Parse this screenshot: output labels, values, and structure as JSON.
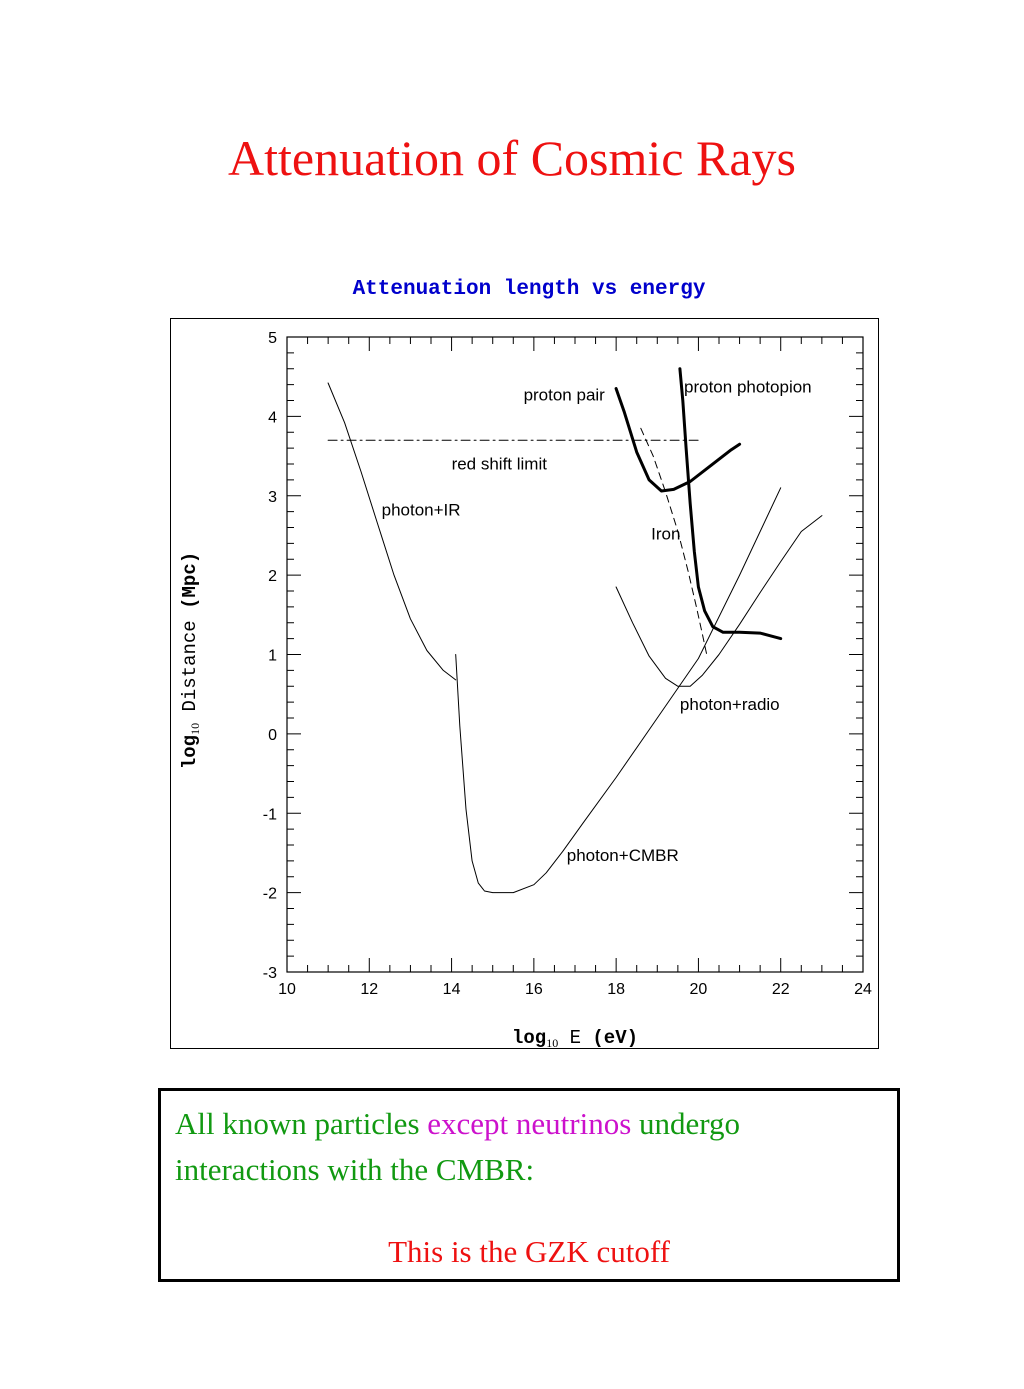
{
  "slide": {
    "title": "Attenuation of Cosmic Rays",
    "title_color": "#ee1111"
  },
  "chart_data": {
    "type": "line",
    "title": "Attenuation length vs energy",
    "title_color": "#0000cc",
    "xlabel": {
      "prefix": "log",
      "sub": "10",
      "main": " E ",
      "unit": "(eV)"
    },
    "ylabel": {
      "prefix": "log",
      "sub": "10",
      "main": " Distance ",
      "unit": "(Mpc)"
    },
    "xlim": [
      10,
      24
    ],
    "ylim": [
      -3,
      5
    ],
    "xticks": [
      10,
      12,
      14,
      16,
      18,
      20,
      22,
      24
    ],
    "yticks": [
      5,
      4,
      3,
      2,
      1,
      0,
      -1,
      -2,
      -3
    ],
    "grid": false,
    "series": [
      {
        "name": "photon+IR",
        "style": "thin",
        "x": [
          11.0,
          11.4,
          11.8,
          12.2,
          12.6,
          13.0,
          13.4,
          13.8,
          14.1
        ],
        "y": [
          4.42,
          3.92,
          3.3,
          2.65,
          2.0,
          1.45,
          1.05,
          0.8,
          0.68
        ]
      },
      {
        "name": "photon+CMBR",
        "style": "thin",
        "x": [
          14.1,
          14.2,
          14.35,
          14.5,
          14.65,
          14.8,
          15.0,
          15.5,
          16.0,
          16.3,
          16.7,
          17.2,
          18.0,
          19.0,
          20.0,
          21.0,
          22.0
        ],
        "y": [
          1.0,
          0.1,
          -0.95,
          -1.6,
          -1.88,
          -1.98,
          -2.0,
          -2.0,
          -1.9,
          -1.75,
          -1.48,
          -1.12,
          -0.55,
          0.2,
          0.95,
          2.0,
          3.1
        ]
      },
      {
        "name": "photon+radio",
        "style": "thin",
        "x": [
          18.0,
          18.4,
          18.8,
          19.2,
          19.5,
          19.8,
          20.1,
          20.5,
          21.0,
          21.5,
          22.0,
          22.5,
          23.0
        ],
        "y": [
          1.85,
          1.4,
          0.98,
          0.7,
          0.6,
          0.6,
          0.74,
          1.0,
          1.38,
          1.78,
          2.17,
          2.55,
          2.75
        ]
      },
      {
        "name": "proton pair",
        "style": "thick",
        "x": [
          18.0,
          18.2,
          18.5,
          18.8,
          19.1,
          19.4,
          19.8,
          20.3,
          20.8,
          21.0
        ],
        "y": [
          4.35,
          4.05,
          3.55,
          3.2,
          3.06,
          3.08,
          3.18,
          3.38,
          3.58,
          3.65
        ]
      },
      {
        "name": "proton photopion",
        "style": "thick",
        "x": [
          19.55,
          19.62,
          19.7,
          19.8,
          19.9,
          20.0,
          20.15,
          20.35,
          20.6,
          21.0,
          21.5,
          22.0
        ],
        "y": [
          4.6,
          4.2,
          3.6,
          2.9,
          2.3,
          1.85,
          1.55,
          1.35,
          1.28,
          1.28,
          1.27,
          1.2
        ]
      },
      {
        "name": "Iron",
        "style": "dashed",
        "x": [
          18.6,
          18.9,
          19.2,
          19.5,
          19.75,
          19.95,
          20.1,
          20.2
        ],
        "y": [
          3.85,
          3.5,
          3.05,
          2.55,
          2.05,
          1.6,
          1.25,
          1.0
        ]
      },
      {
        "name": "red shift limit",
        "style": "dashdot",
        "x": [
          11.0,
          20.0
        ],
        "y": [
          3.7,
          3.7
        ]
      }
    ],
    "annotations": [
      {
        "text": "photon+IR",
        "x": 12.3,
        "y": 2.75
      },
      {
        "text": "red shift limit",
        "x": 14.0,
        "y": 3.33
      },
      {
        "text": "proton pair",
        "x": 15.75,
        "y": 4.2
      },
      {
        "text": "proton photopion",
        "x": 19.65,
        "y": 4.3
      },
      {
        "text": "Iron",
        "x": 18.85,
        "y": 2.45
      },
      {
        "text": "photon+radio",
        "x": 19.55,
        "y": 0.3
      },
      {
        "text": "photon+CMBR",
        "x": 16.8,
        "y": -1.6
      }
    ]
  },
  "caption": {
    "part1": "All known particles ",
    "part1_color": "#119911",
    "part2": "except neutrinos",
    "part2_color": "#cc11cc",
    "part3": " undergo interactions with the CMBR:",
    "part3_color": "#119911",
    "conclusion": "This is the GZK cutoff",
    "conclusion_color": "#ee1111"
  }
}
